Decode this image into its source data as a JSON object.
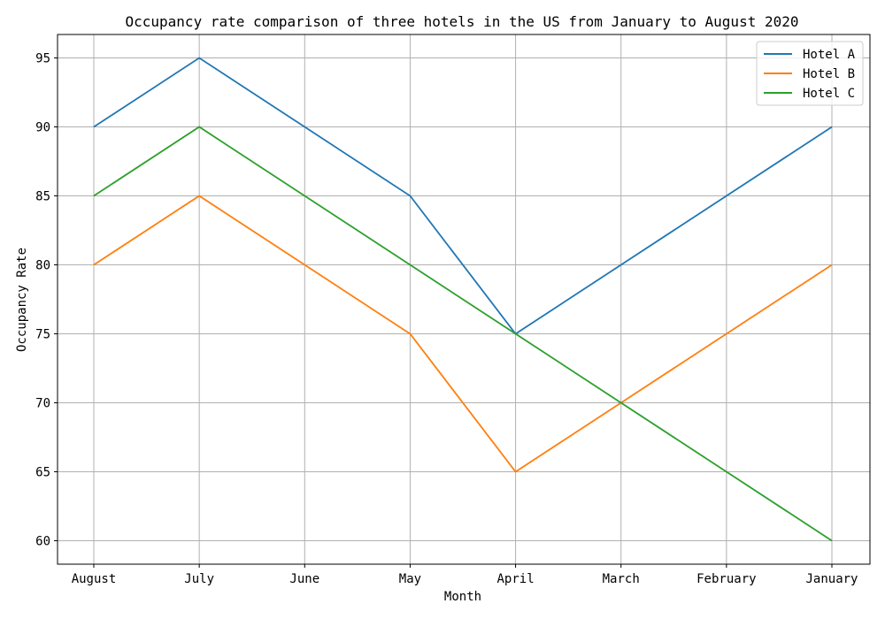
{
  "chart_data": {
    "type": "line",
    "title": "Occupancy rate comparison of three hotels in the US from January to August 2020",
    "xlabel": "Month",
    "ylabel": "Occupancy Rate",
    "categories": [
      "August",
      "July",
      "June",
      "May",
      "April",
      "March",
      "February",
      "January"
    ],
    "ylim": [
      58.3,
      96.7
    ],
    "yticks": [
      60,
      65,
      70,
      75,
      80,
      85,
      90,
      95
    ],
    "grid": true,
    "legend_position": "top-right",
    "series": [
      {
        "name": "Hotel A",
        "color": "#1f77b4",
        "values": [
          90,
          95,
          90,
          85,
          75,
          80,
          85,
          90
        ]
      },
      {
        "name": "Hotel B",
        "color": "#ff7f0e",
        "values": [
          80,
          85,
          80,
          75,
          65,
          70,
          75,
          80
        ]
      },
      {
        "name": "Hotel C",
        "color": "#2ca02c",
        "values": [
          85,
          90,
          85,
          80,
          75,
          70,
          65,
          60
        ]
      }
    ]
  }
}
